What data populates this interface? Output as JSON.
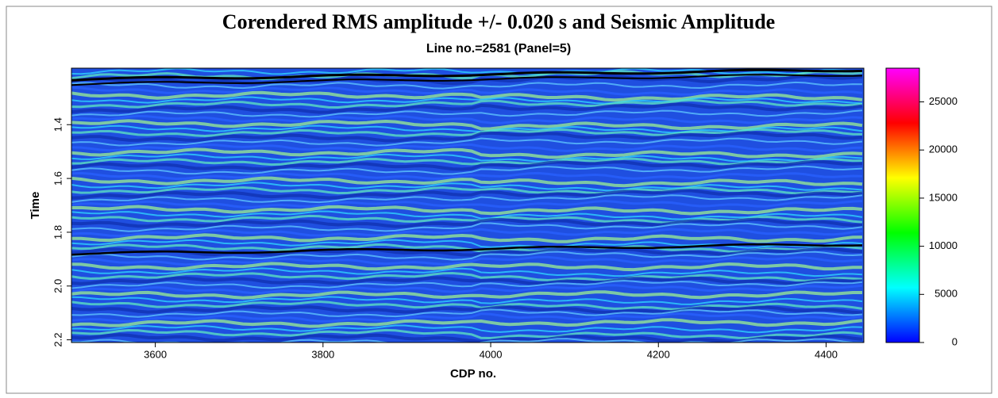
{
  "chart_data": {
    "type": "heatmap",
    "title": "Corendered RMS amplitude +/- 0.020 s and Seismic Amplitude",
    "subtitle": "Line no.=2581 (Panel=5)",
    "x_label": "CDP no.",
    "y_label": "Time",
    "xlim": [
      3500,
      4445
    ],
    "xticks": [
      3600,
      3800,
      4000,
      4200,
      4400
    ],
    "ylim": [
      1.19,
      2.21
    ],
    "yticks": [
      1.4,
      1.6,
      1.8,
      {
        "value": 2,
        "label": "2.0"
      },
      2.2
    ],
    "colorbar_lim": [
      0,
      28500
    ],
    "colorbar_ticks": [
      0,
      5000,
      10000,
      15000,
      20000,
      25000
    ],
    "colormap": [
      "#0000ff",
      "#00ffff",
      "#00ff00",
      "#ffff00",
      "#ff0000",
      "#ff00ff"
    ]
  }
}
